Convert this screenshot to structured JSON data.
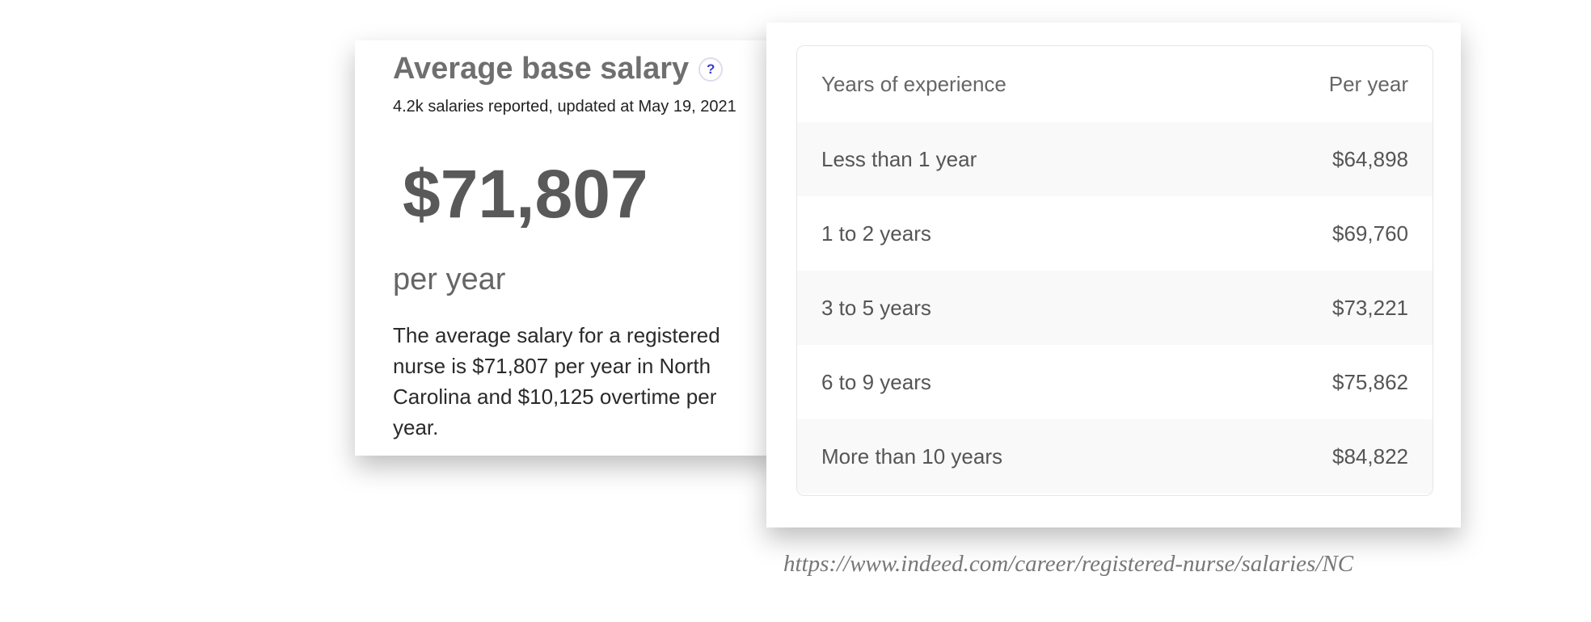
{
  "summary": {
    "title": "Average base salary",
    "help_icon": "?",
    "subtitle": "4.2k salaries reported, updated at May 19, 2021",
    "amount": "$71,807",
    "period": "per year",
    "description": "The average salary for a registered nurse is $71,807 per year in North Carolina and $10,125 overtime per year."
  },
  "table": {
    "headers": [
      "Years of experience",
      "Per year"
    ],
    "rows": [
      [
        "Less than 1 year",
        "$64,898"
      ],
      [
        "1 to 2 years",
        "$69,760"
      ],
      [
        "3 to 5 years",
        "$73,221"
      ],
      [
        "6 to 9 years",
        "$75,862"
      ],
      [
        "More than 10 years",
        "$84,822"
      ]
    ]
  },
  "source_url": "https://www.indeed.com/career/registered-nurse/salaries/NC"
}
